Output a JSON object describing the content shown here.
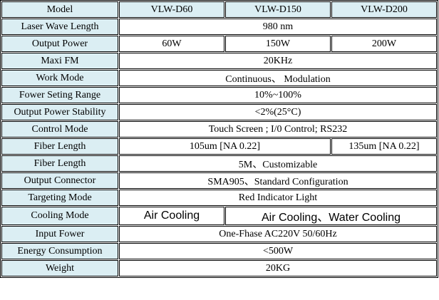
{
  "table": {
    "rows": [
      [
        "Model",
        "VLW-D60",
        "VLW-D150",
        "VLW-D200"
      ],
      [
        "Laser Wave Length",
        "980 nm"
      ],
      [
        "Output Power",
        "60W",
        "150W",
        "200W"
      ],
      [
        "Maxi FM",
        "20KHz"
      ],
      [
        "Work Mode",
        "Continuous、 Modulation"
      ],
      [
        "Fower Seting Range",
        "10%~100%"
      ],
      [
        "Output Power Stability",
        "<2%(25°C)"
      ],
      [
        "Control Mode",
        "Touch Screen ;  I/0 Control; RS232"
      ],
      [
        "Fiber Length",
        "105um [NA 0.22]",
        "135um [NA 0.22]"
      ],
      [
        "Fiber Length",
        "5M、Customizable"
      ],
      [
        "Output Connector",
        "SMA905、Standard Configuration"
      ],
      [
        "Targeting Mode",
        "Red Indicator Light"
      ],
      [
        "Cooling Mode",
        "Air Cooling",
        "Air Cooling、Water Cooling"
      ],
      [
        "Input Fower",
        "One-Fhase AC220V 50/60Hz"
      ],
      [
        "Energy Consumption",
        "<500W"
      ],
      [
        "Weight",
        "20KG"
      ]
    ]
  }
}
